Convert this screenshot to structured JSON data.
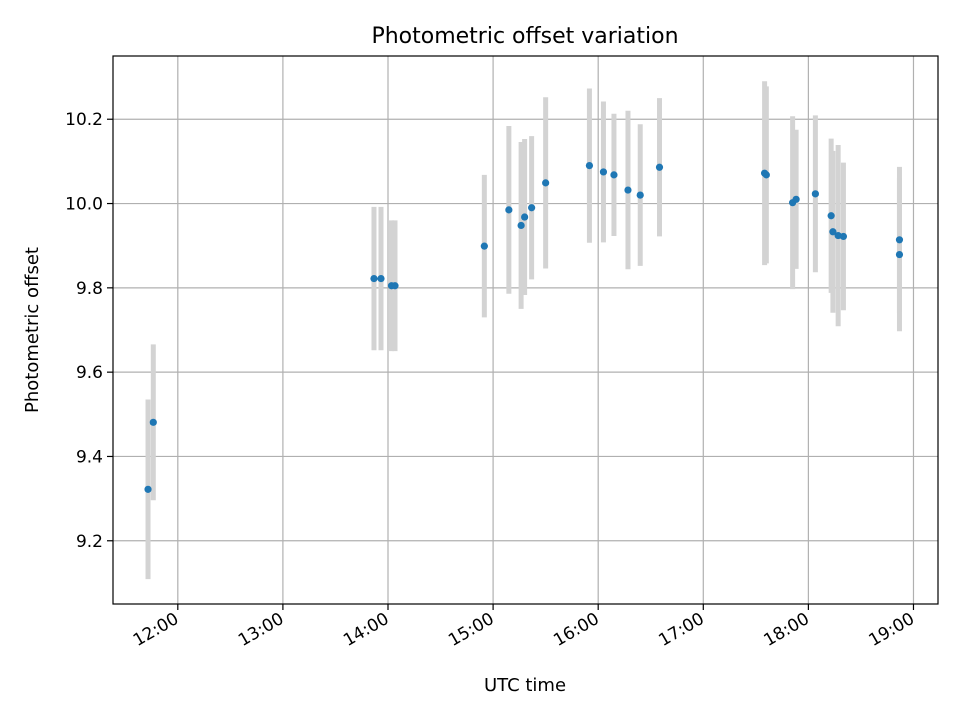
{
  "chart_data": {
    "type": "scatter",
    "title": "Photometric offset variation",
    "xlabel": "UTC time",
    "ylabel": "Photometric offset",
    "xlim": [
      "11:23",
      "19:14"
    ],
    "ylim": [
      9.05,
      10.35
    ],
    "x_ticks": [
      "12:00",
      "13:00",
      "14:00",
      "15:00",
      "16:00",
      "17:00",
      "18:00",
      "19:00"
    ],
    "y_ticks": [
      9.2,
      9.4,
      9.6,
      9.8,
      10.0,
      10.2
    ],
    "grid": true,
    "colors": {
      "points": "#1f77b4",
      "error_bars": "#d3d3d3"
    },
    "points": [
      {
        "time": "11:43",
        "y": 9.322,
        "err": 0.213
      },
      {
        "time": "11:46",
        "y": 9.481,
        "err": 0.185
      },
      {
        "time": "13:52",
        "y": 9.822,
        "err": 0.17
      },
      {
        "time": "13:56",
        "y": 9.822,
        "err": 0.17
      },
      {
        "time": "14:02",
        "y": 9.805,
        "err": 0.155
      },
      {
        "time": "14:04",
        "y": 9.805,
        "err": 0.155
      },
      {
        "time": "14:55",
        "y": 9.899,
        "err": 0.169
      },
      {
        "time": "15:09",
        "y": 9.985,
        "err": 0.199
      },
      {
        "time": "15:16",
        "y": 9.948,
        "err": 0.198
      },
      {
        "time": "15:18",
        "y": 9.968,
        "err": 0.185
      },
      {
        "time": "15:22",
        "y": 9.99,
        "err": 0.17
      },
      {
        "time": "15:30",
        "y": 10.049,
        "err": 0.203
      },
      {
        "time": "15:55",
        "y": 10.09,
        "err": 0.183
      },
      {
        "time": "16:03",
        "y": 10.075,
        "err": 0.167
      },
      {
        "time": "16:09",
        "y": 10.068,
        "err": 0.145
      },
      {
        "time": "16:17",
        "y": 10.032,
        "err": 0.188
      },
      {
        "time": "16:24",
        "y": 10.02,
        "err": 0.168
      },
      {
        "time": "16:35",
        "y": 10.086,
        "err": 0.164
      },
      {
        "time": "17:35",
        "y": 10.072,
        "err": 0.218
      },
      {
        "time": "17:36",
        "y": 10.068,
        "err": 0.21
      },
      {
        "time": "17:51",
        "y": 10.002,
        "err": 0.205
      },
      {
        "time": "17:53",
        "y": 10.01,
        "err": 0.165
      },
      {
        "time": "18:04",
        "y": 10.023,
        "err": 0.186
      },
      {
        "time": "18:13",
        "y": 9.971,
        "err": 0.183
      },
      {
        "time": "18:14",
        "y": 9.933,
        "err": 0.192
      },
      {
        "time": "18:17",
        "y": 9.924,
        "err": 0.215
      },
      {
        "time": "18:20",
        "y": 9.922,
        "err": 0.175
      },
      {
        "time": "18:52",
        "y": 9.914,
        "err": 0.173
      },
      {
        "time": "18:52",
        "y": 9.879,
        "err": 0.182
      }
    ]
  }
}
